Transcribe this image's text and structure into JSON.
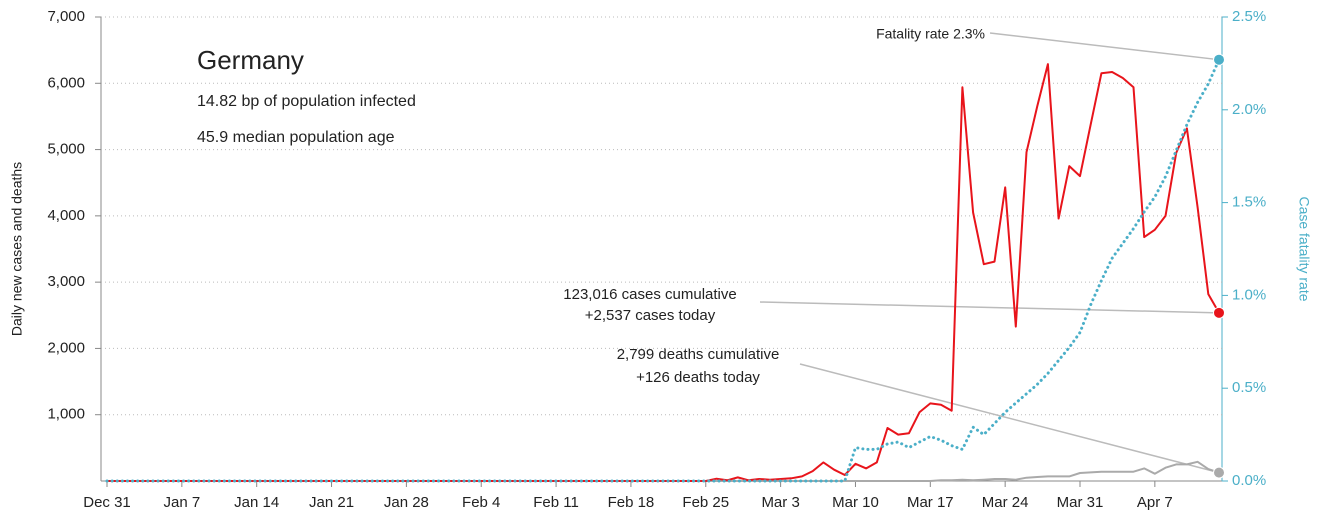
{
  "chart_data": {
    "type": "line",
    "title": "Germany",
    "subtitles": [
      "14.82 bp of population infected",
      "45.9 median population age"
    ],
    "ylabel": "Daily new cases and deaths",
    "y2label": "Case fatality rate",
    "annotations": {
      "fatality": "Fatality rate 2.3%",
      "cases": [
        "123,016 cases cumulative",
        "+2,537 cases today"
      ],
      "deaths": [
        "2,799 deaths cumulative",
        "+126 deaths today"
      ]
    },
    "categories": [
      "Dec 31",
      null,
      null,
      null,
      null,
      null,
      null,
      "Jan 7",
      null,
      null,
      null,
      null,
      null,
      null,
      "Jan 14",
      null,
      null,
      null,
      null,
      null,
      null,
      "Jan 21",
      null,
      null,
      null,
      null,
      null,
      null,
      "Jan 28",
      null,
      null,
      null,
      null,
      null,
      null,
      "Feb 4",
      null,
      null,
      null,
      null,
      null,
      null,
      "Feb 11",
      null,
      null,
      null,
      null,
      null,
      null,
      "Feb 18",
      null,
      null,
      null,
      null,
      null,
      null,
      "Feb 25",
      null,
      null,
      null,
      null,
      null,
      null,
      "Mar 3",
      null,
      null,
      null,
      null,
      null,
      null,
      "Mar 10",
      null,
      null,
      null,
      null,
      null,
      null,
      "Mar 17",
      null,
      null,
      null,
      null,
      null,
      null,
      "Mar 24",
      null,
      null,
      null,
      null,
      null,
      null,
      "Mar 31",
      null,
      null,
      null,
      null,
      null,
      null,
      "Apr 7",
      null,
      null,
      null,
      null,
      null,
      null
    ],
    "ylim": [
      0,
      7000
    ],
    "yticks": [
      {
        "value": 1000,
        "label": "1,000"
      },
      {
        "value": 2000,
        "label": "2,000"
      },
      {
        "value": 3000,
        "label": "3,000"
      },
      {
        "value": 4000,
        "label": "4,000"
      },
      {
        "value": 5000,
        "label": "5,000"
      },
      {
        "value": 6000,
        "label": "6,000"
      },
      {
        "value": 7000,
        "label": "7,000"
      }
    ],
    "y2lim": [
      0,
      2.5
    ],
    "y2ticks": [
      {
        "value": 0,
        "label": "0.0%"
      },
      {
        "value": 0.5,
        "label": "0.5%"
      },
      {
        "value": 1,
        "label": "1.0%"
      },
      {
        "value": 1.5,
        "label": "1.5%"
      },
      {
        "value": 2,
        "label": "2.0%"
      },
      {
        "value": 2.5,
        "label": "2.5%"
      }
    ],
    "grid": true,
    "series": [
      {
        "name": "cases",
        "color": "#e8141b",
        "style": "solid",
        "values": [
          0,
          0,
          0,
          0,
          0,
          0,
          0,
          0,
          0,
          0,
          0,
          0,
          0,
          0,
          0,
          0,
          0,
          0,
          0,
          0,
          0,
          0,
          0,
          0,
          0,
          0,
          0,
          0,
          0,
          0,
          0,
          0,
          0,
          0,
          0,
          0,
          0,
          0,
          0,
          0,
          0,
          0,
          0,
          0,
          0,
          0,
          0,
          0,
          0,
          0,
          0,
          0,
          0,
          0,
          0,
          0,
          0,
          35,
          10,
          55,
          10,
          30,
          20,
          30,
          40,
          70,
          150,
          280,
          170,
          90,
          260,
          190,
          280,
          800,
          700,
          720,
          1040,
          1170,
          1150,
          1060,
          5940,
          4050,
          3270,
          3310,
          4430,
          2330,
          4960,
          5650,
          6290,
          3960,
          4750,
          4600,
          5380,
          6150,
          6170,
          6080,
          5940,
          3680,
          3790,
          4000,
          4950,
          5320,
          4130,
          2820,
          2537
        ]
      },
      {
        "name": "deaths",
        "color": "#aaaaaa",
        "style": "solid",
        "values": [
          0,
          0,
          0,
          0,
          0,
          0,
          0,
          0,
          0,
          0,
          0,
          0,
          0,
          0,
          0,
          0,
          0,
          0,
          0,
          0,
          0,
          0,
          0,
          0,
          0,
          0,
          0,
          0,
          0,
          0,
          0,
          0,
          0,
          0,
          0,
          0,
          0,
          0,
          0,
          0,
          0,
          0,
          0,
          0,
          0,
          0,
          0,
          0,
          0,
          0,
          0,
          0,
          0,
          0,
          0,
          0,
          0,
          0,
          0,
          0,
          0,
          0,
          0,
          0,
          0,
          0,
          0,
          0,
          0,
          0,
          0,
          0,
          0,
          0,
          0,
          0,
          0,
          0,
          10,
          10,
          20,
          10,
          20,
          30,
          30,
          20,
          50,
          60,
          70,
          70,
          70,
          120,
          130,
          140,
          140,
          140,
          140,
          190,
          110,
          200,
          250,
          250,
          290,
          180,
          126
        ]
      },
      {
        "name": "fatality rate",
        "color": "#4bafc8",
        "style": "dotted",
        "axis": "y2",
        "values": [
          0,
          0,
          0,
          0,
          0,
          0,
          0,
          0,
          0,
          0,
          0,
          0,
          0,
          0,
          0,
          0,
          0,
          0,
          0,
          0,
          0,
          0,
          0,
          0,
          0,
          0,
          0,
          0,
          0,
          0,
          0,
          0,
          0,
          0,
          0,
          0,
          0,
          0,
          0,
          0,
          0,
          0,
          0,
          0,
          0,
          0,
          0,
          0,
          0,
          0,
          0,
          0,
          0,
          0,
          0,
          0,
          0,
          0,
          0,
          0,
          0,
          0,
          0,
          0,
          0,
          0,
          0,
          0,
          0,
          0,
          0.18,
          0.17,
          0.17,
          0.2,
          0.21,
          0.18,
          0.21,
          0.24,
          0.22,
          0.19,
          0.17,
          0.29,
          0.25,
          0.31,
          0.37,
          0.42,
          0.47,
          0.52,
          0.58,
          0.65,
          0.72,
          0.8,
          0.95,
          1.08,
          1.2,
          1.28,
          1.36,
          1.45,
          1.53,
          1.64,
          1.78,
          1.92,
          2.04,
          2.14,
          2.27
        ]
      }
    ]
  }
}
